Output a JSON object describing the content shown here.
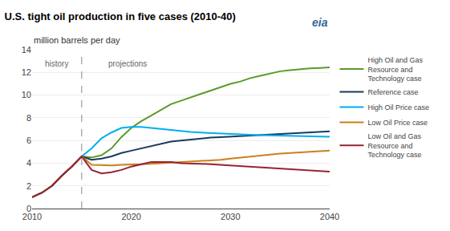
{
  "chart_data": {
    "type": "line",
    "title": "U.S. tight oil production in five cases (2010-40)",
    "subtitle": "million barrels per day",
    "x": [
      2010,
      2011,
      2012,
      2013,
      2014,
      2015,
      2016,
      2017,
      2018,
      2019,
      2020,
      2021,
      2022,
      2023,
      2024,
      2025,
      2026,
      2027,
      2028,
      2029,
      2030,
      2031,
      2032,
      2033,
      2034,
      2035,
      2036,
      2037,
      2038,
      2039,
      2040
    ],
    "series": [
      {
        "name": "High Oil and Gas\nResource and\nTechnology case",
        "color": "#5b9a28",
        "values": [
          1.0,
          1.4,
          2.0,
          2.9,
          3.7,
          4.6,
          4.5,
          4.7,
          5.3,
          6.3,
          7.1,
          7.7,
          8.2,
          8.7,
          9.2,
          9.5,
          9.8,
          10.1,
          10.4,
          10.7,
          11.0,
          11.2,
          11.5,
          11.7,
          11.9,
          12.1,
          12.2,
          12.3,
          12.35,
          12.4,
          12.45
        ]
      },
      {
        "name": "Reference case",
        "color": "#1a3a5c",
        "values": [
          1.0,
          1.4,
          2.0,
          2.9,
          3.7,
          4.6,
          4.3,
          4.4,
          4.6,
          4.9,
          5.1,
          5.3,
          5.5,
          5.7,
          5.9,
          6.0,
          6.1,
          6.2,
          6.25,
          6.3,
          6.35,
          6.4,
          6.45,
          6.5,
          6.55,
          6.6,
          6.65,
          6.7,
          6.75,
          6.78,
          6.8
        ]
      },
      {
        "name": "High Oil Price case",
        "color": "#00aeef",
        "values": [
          1.0,
          1.4,
          2.0,
          2.9,
          3.7,
          4.6,
          5.3,
          6.2,
          6.7,
          7.1,
          7.2,
          7.2,
          7.1,
          7.0,
          6.9,
          6.8,
          6.75,
          6.7,
          6.65,
          6.6,
          6.55,
          6.52,
          6.5,
          6.47,
          6.45,
          6.42,
          6.4,
          6.38,
          6.36,
          6.35,
          6.33
        ]
      },
      {
        "name": "Low Oil Price case",
        "color": "#c8821a",
        "values": [
          1.0,
          1.4,
          2.0,
          2.9,
          3.7,
          4.6,
          3.85,
          3.8,
          3.8,
          3.85,
          3.85,
          3.9,
          3.95,
          4.0,
          4.0,
          4.05,
          4.1,
          4.15,
          4.2,
          4.3,
          4.4,
          4.5,
          4.6,
          4.7,
          4.8,
          4.85,
          4.9,
          4.95,
          5.0,
          5.05,
          5.1
        ]
      },
      {
        "name": "Low Oil and Gas\nResource and\nTechnology case",
        "color": "#992233",
        "values": [
          1.0,
          1.4,
          2.0,
          2.9,
          3.7,
          4.6,
          3.4,
          3.1,
          3.2,
          3.4,
          3.7,
          3.9,
          4.1,
          4.1,
          4.1,
          4.0,
          4.0,
          3.95,
          3.9,
          3.85,
          3.8,
          3.75,
          3.7,
          3.6,
          3.55,
          3.5,
          3.45,
          3.4,
          3.35,
          3.3,
          3.25
        ]
      }
    ],
    "xlim": [
      2010,
      2040
    ],
    "xticks": [
      2010,
      2020,
      2030,
      2040
    ],
    "ylim": [
      0,
      14
    ],
    "yticks": [
      0,
      2,
      4,
      6,
      8,
      10,
      12,
      14
    ],
    "vlines": [
      2015
    ],
    "annotations": [
      {
        "text": "history",
        "x": 2012.5,
        "y": 13.3
      },
      {
        "text": "projections",
        "x": 2017.5,
        "y": 13.3
      },
      {
        "text": "eia"
      }
    ],
    "grid": "y",
    "legend": "right"
  }
}
